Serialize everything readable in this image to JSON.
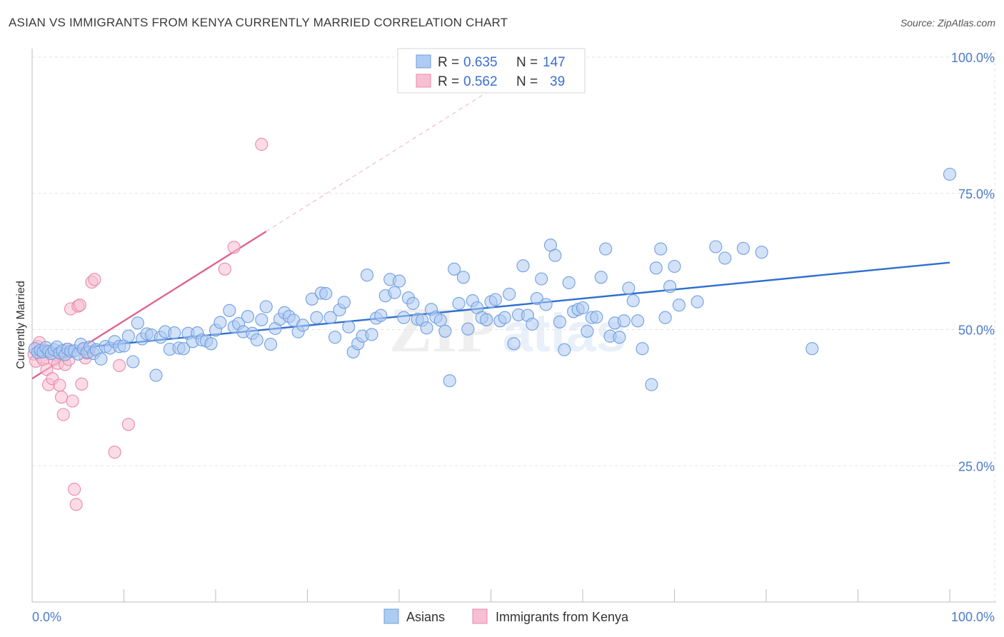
{
  "header": {
    "title": "ASIAN VS IMMIGRANTS FROM KENYA CURRENTLY MARRIED CORRELATION CHART",
    "source": "Source: ZipAtlas.com"
  },
  "watermark": {
    "part1": "ZIP",
    "part2": "atlas"
  },
  "chart_data": {
    "type": "scatter",
    "title": "ASIAN VS IMMIGRANTS FROM KENYA CURRENTLY MARRIED CORRELATION CHART",
    "xlabel": "",
    "ylabel": "Currently Married",
    "xlim": [
      0,
      100
    ],
    "ylim": [
      0,
      100
    ],
    "x_tick_labels": {
      "left": "0.0%",
      "right": "100.0%"
    },
    "y_ticks": [
      {
        "value": 25,
        "label": "25.0%"
      },
      {
        "value": 50,
        "label": "50.0%"
      },
      {
        "value": 75,
        "label": "75.0%"
      },
      {
        "value": 100,
        "label": "100.0%"
      }
    ],
    "grid": true,
    "legend_position": "top-center",
    "stats": [
      {
        "r_label": "R =",
        "r": "0.635",
        "n_label": "N =",
        "n": "147"
      },
      {
        "r_label": "R =",
        "r": "0.562",
        "n_label": "N =",
        "n": "39"
      }
    ],
    "series": [
      {
        "name": "Asians",
        "color": "#6f9fe0",
        "fill": "#aecbf2",
        "trend": {
          "x1": 0,
          "y1": 45.8,
          "x2": 100,
          "y2": 62.3,
          "color": "#2f6fcf"
        },
        "points": [
          [
            0.3,
            46.5
          ],
          [
            0.6,
            45.8
          ],
          [
            0.9,
            46.2
          ],
          [
            1.2,
            45.9
          ],
          [
            1.5,
            46.7
          ],
          [
            1.8,
            46.0
          ],
          [
            2.1,
            45.6
          ],
          [
            2.4,
            46.3
          ],
          [
            2.7,
            46.8
          ],
          [
            3.0,
            45.7
          ],
          [
            3.3,
            46.1
          ],
          [
            3.6,
            45.4
          ],
          [
            3.9,
            46.4
          ],
          [
            4.2,
            46.0
          ],
          [
            4.6,
            46.1
          ],
          [
            5.0,
            45.5
          ],
          [
            5.3,
            47.3
          ],
          [
            5.6,
            46.5
          ],
          [
            6.0,
            45.8
          ],
          [
            6.3,
            46.8
          ],
          [
            6.7,
            45.6
          ],
          [
            7.0,
            46.3
          ],
          [
            7.5,
            44.6
          ],
          [
            8.0,
            46.9
          ],
          [
            8.5,
            46.6
          ],
          [
            9.0,
            47.8
          ],
          [
            9.5,
            46.9
          ],
          [
            10.0,
            47.0
          ],
          [
            10.5,
            48.8
          ],
          [
            11.0,
            44.1
          ],
          [
            11.5,
            51.2
          ],
          [
            12.0,
            48.3
          ],
          [
            12.5,
            49.2
          ],
          [
            13.0,
            49.0
          ],
          [
            13.5,
            41.6
          ],
          [
            14.0,
            48.6
          ],
          [
            14.5,
            49.6
          ],
          [
            15.0,
            46.4
          ],
          [
            15.5,
            49.4
          ],
          [
            16.0,
            46.6
          ],
          [
            16.5,
            46.5
          ],
          [
            17.0,
            49.3
          ],
          [
            17.5,
            47.8
          ],
          [
            18.0,
            49.4
          ],
          [
            18.5,
            48.1
          ],
          [
            19.0,
            47.9
          ],
          [
            19.5,
            47.4
          ],
          [
            20.0,
            49.9
          ],
          [
            20.5,
            51.3
          ],
          [
            21.5,
            53.5
          ],
          [
            22.0,
            50.5
          ],
          [
            22.5,
            51.1
          ],
          [
            23.0,
            49.6
          ],
          [
            23.5,
            52.4
          ],
          [
            24.0,
            49.3
          ],
          [
            24.5,
            48.1
          ],
          [
            25.0,
            51.8
          ],
          [
            25.5,
            54.2
          ],
          [
            26.0,
            47.3
          ],
          [
            26.5,
            50.2
          ],
          [
            27.0,
            51.9
          ],
          [
            27.5,
            53.1
          ],
          [
            28.0,
            52.4
          ],
          [
            28.5,
            51.7
          ],
          [
            29.0,
            49.6
          ],
          [
            29.5,
            50.8
          ],
          [
            30.5,
            55.6
          ],
          [
            31.0,
            52.2
          ],
          [
            31.5,
            56.7
          ],
          [
            32.0,
            56.6
          ],
          [
            32.5,
            52.2
          ],
          [
            33.0,
            48.6
          ],
          [
            33.5,
            53.6
          ],
          [
            34.0,
            55.0
          ],
          [
            34.5,
            50.5
          ],
          [
            35.0,
            45.9
          ],
          [
            35.5,
            47.4
          ],
          [
            36.0,
            48.8
          ],
          [
            36.5,
            60.0
          ],
          [
            37.0,
            49.1
          ],
          [
            37.5,
            52.1
          ],
          [
            38.0,
            52.6
          ],
          [
            38.5,
            56.2
          ],
          [
            39.0,
            59.2
          ],
          [
            39.5,
            56.8
          ],
          [
            40.0,
            58.9
          ],
          [
            40.5,
            52.2
          ],
          [
            41.0,
            55.8
          ],
          [
            41.5,
            54.8
          ],
          [
            42.0,
            51.9
          ],
          [
            42.5,
            51.7
          ],
          [
            43.0,
            50.3
          ],
          [
            43.5,
            53.7
          ],
          [
            44.0,
            52.3
          ],
          [
            44.5,
            51.7
          ],
          [
            45.0,
            49.7
          ],
          [
            45.5,
            40.6
          ],
          [
            46.0,
            61.1
          ],
          [
            46.5,
            54.8
          ],
          [
            47.0,
            59.6
          ],
          [
            47.5,
            50.1
          ],
          [
            48.0,
            55.3
          ],
          [
            48.5,
            54.0
          ],
          [
            49.0,
            52.2
          ],
          [
            49.5,
            51.8
          ],
          [
            50.0,
            55.1
          ],
          [
            50.5,
            55.5
          ],
          [
            51.0,
            51.6
          ],
          [
            51.5,
            52.2
          ],
          [
            52.0,
            56.5
          ],
          [
            52.5,
            47.4
          ],
          [
            53.0,
            52.7
          ],
          [
            53.5,
            61.7
          ],
          [
            54.0,
            52.6
          ],
          [
            54.5,
            51.0
          ],
          [
            55.0,
            55.7
          ],
          [
            55.5,
            59.3
          ],
          [
            56.0,
            54.6
          ],
          [
            56.5,
            65.5
          ],
          [
            57.0,
            63.6
          ],
          [
            57.5,
            51.4
          ],
          [
            58.0,
            46.3
          ],
          [
            58.5,
            58.6
          ],
          [
            59.0,
            53.3
          ],
          [
            59.5,
            53.7
          ],
          [
            60.0,
            54.0
          ],
          [
            60.5,
            49.7
          ],
          [
            61.0,
            52.2
          ],
          [
            61.5,
            52.3
          ],
          [
            62.0,
            59.6
          ],
          [
            62.5,
            64.8
          ],
          [
            63.0,
            48.8
          ],
          [
            63.5,
            51.2
          ],
          [
            64.0,
            48.6
          ],
          [
            64.5,
            51.6
          ],
          [
            65.0,
            57.6
          ],
          [
            65.5,
            55.3
          ],
          [
            66.0,
            51.6
          ],
          [
            66.5,
            46.5
          ],
          [
            67.5,
            39.9
          ],
          [
            68.0,
            61.3
          ],
          [
            68.5,
            64.8
          ],
          [
            69.0,
            52.2
          ],
          [
            69.5,
            57.9
          ],
          [
            70.0,
            61.6
          ],
          [
            70.5,
            54.5
          ],
          [
            72.5,
            55.1
          ],
          [
            74.5,
            65.2
          ],
          [
            75.5,
            63.1
          ],
          [
            77.5,
            64.9
          ],
          [
            79.5,
            64.2
          ],
          [
            85.0,
            46.5
          ],
          [
            100.0,
            78.5
          ]
        ]
      },
      {
        "name": "Immigrants from Kenya",
        "color": "#e889a9",
        "fill": "#f7bfd1",
        "trend": {
          "x1": 0,
          "y1": 41.0,
          "x2": 25.5,
          "y2": 68.0,
          "color": "#e0628d"
        },
        "trend_extension": {
          "x1": 25.5,
          "y1": 68.0,
          "x2": 50.0,
          "y2": 94.0
        },
        "points": [
          [
            0.2,
            45.5
          ],
          [
            0.4,
            44.2
          ],
          [
            0.6,
            46.9
          ],
          [
            0.8,
            47.6
          ],
          [
            1.0,
            45.0
          ],
          [
            1.2,
            44.5
          ],
          [
            1.4,
            46.2
          ],
          [
            1.6,
            42.7
          ],
          [
            1.8,
            39.9
          ],
          [
            2.0,
            46.0
          ],
          [
            2.2,
            41.0
          ],
          [
            2.4,
            44.5
          ],
          [
            2.6,
            45.4
          ],
          [
            2.8,
            43.8
          ],
          [
            3.0,
            39.8
          ],
          [
            3.2,
            37.6
          ],
          [
            3.4,
            34.4
          ],
          [
            3.6,
            43.6
          ],
          [
            3.8,
            46.4
          ],
          [
            4.0,
            44.5
          ],
          [
            4.2,
            53.8
          ],
          [
            4.4,
            36.9
          ],
          [
            4.6,
            20.7
          ],
          [
            4.8,
            17.9
          ],
          [
            5.0,
            54.3
          ],
          [
            5.2,
            54.5
          ],
          [
            5.4,
            40.0
          ],
          [
            5.6,
            46.3
          ],
          [
            5.8,
            44.8
          ],
          [
            6.0,
            45.7
          ],
          [
            6.2,
            45.9
          ],
          [
            6.5,
            58.7
          ],
          [
            6.8,
            59.2
          ],
          [
            9.0,
            27.5
          ],
          [
            9.5,
            43.4
          ],
          [
            10.5,
            32.6
          ],
          [
            21.0,
            61.1
          ],
          [
            22.0,
            65.1
          ],
          [
            25.0,
            84.0
          ]
        ]
      }
    ]
  },
  "bottom_legend": {
    "items": [
      {
        "label": "Asians"
      },
      {
        "label": "Immigrants from Kenya"
      }
    ]
  }
}
